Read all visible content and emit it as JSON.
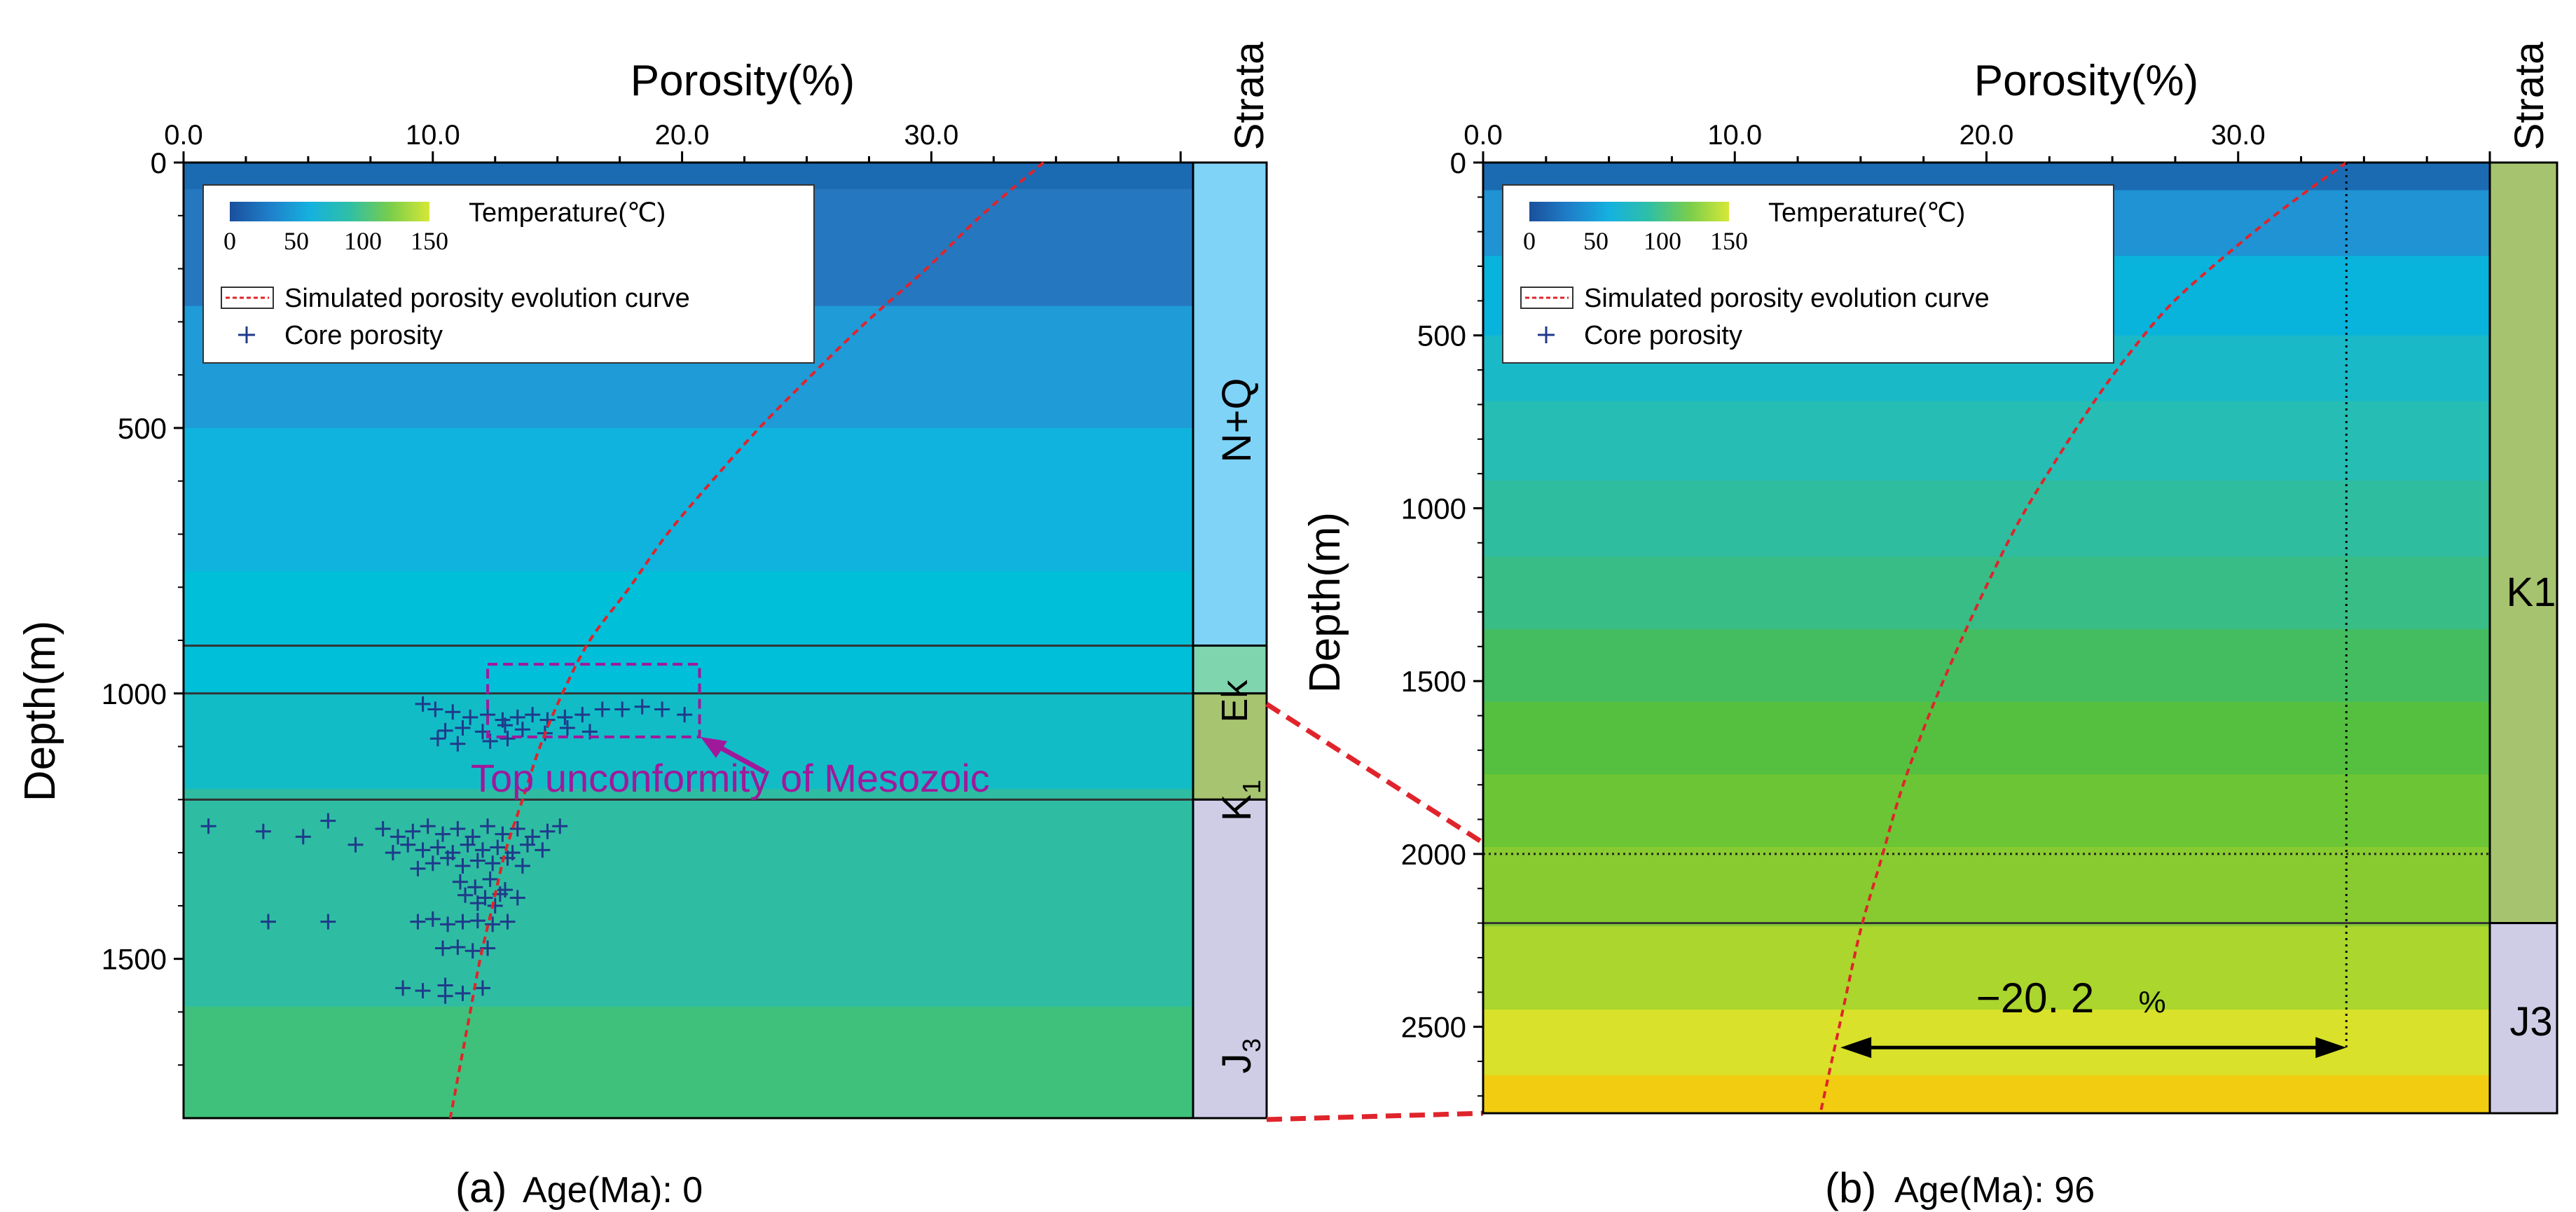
{
  "chart_data": [
    {
      "type": "line",
      "panel": "a",
      "caption_prefix": "(a)",
      "caption": "Age(Ma): 0",
      "xlabel": "Porosity(%)",
      "ylabel": "Depth(m)",
      "xlim": [
        0,
        40.5
      ],
      "ylim": [
        0,
        1800
      ],
      "x_ticks": [
        "0.0",
        "10.0",
        "20.0",
        "30.0"
      ],
      "x_tick_values": [
        0,
        10,
        20,
        30
      ],
      "y_ticks": [
        "0",
        "500",
        "1000",
        "1500"
      ],
      "y_tick_values": [
        0,
        500,
        1000,
        1500
      ],
      "strata_header": "Strata",
      "strata": [
        {
          "name": "N+Q",
          "top": 0,
          "bottom": 910,
          "color": "#7fd3f6"
        },
        {
          "name": "Ek",
          "top": 910,
          "bottom": 1000,
          "color": "#7fd6ae"
        },
        {
          "name": "K1",
          "top": 1000,
          "bottom": 1200,
          "color": "#a7c470"
        },
        {
          "name": "J3",
          "top": 1200,
          "bottom": 1800,
          "color": "#cfcde6"
        }
      ],
      "strata_labels": {
        "nq": "N+Q",
        "ek": "Ek",
        "k_main": "K",
        "k_sub": "1",
        "j_main": "J",
        "j_sub": "3"
      },
      "boundaries": [
        910,
        1000,
        1200
      ],
      "temperature_bands": [
        {
          "top": 0,
          "bottom": 50,
          "color": "#1b6bb3"
        },
        {
          "top": 50,
          "bottom": 270,
          "color": "#2577bf"
        },
        {
          "top": 270,
          "bottom": 500,
          "color": "#1f9bd8"
        },
        {
          "top": 500,
          "bottom": 770,
          "color": "#10b3dd"
        },
        {
          "top": 770,
          "bottom": 1000,
          "color": "#00bfd8"
        },
        {
          "top": 1000,
          "bottom": 1180,
          "color": "#12bcc6"
        },
        {
          "top": 1180,
          "bottom": 1590,
          "color": "#2ebda2"
        },
        {
          "top": 1590,
          "bottom": 1800,
          "color": "#3fc17b"
        }
      ],
      "legend": {
        "colorbar_title": "Temperature(℃)",
        "colorbar_ticks": [
          "0",
          "50",
          "100",
          "150"
        ],
        "curve_label": "Simulated porosity evolution curve",
        "points_label": "Core porosity"
      },
      "porosity_curve": {
        "name": "Simulated porosity evolution curve",
        "x": [
          34.5,
          32,
          29.8,
          27.4,
          25.2,
          23.1,
          21.2,
          19.4,
          17.9,
          16.3,
          15.2,
          14.3,
          13.6,
          12.9,
          12.4,
          11.9,
          11.5,
          11.1,
          10.7
        ],
        "y": [
          0,
          100,
          200,
          300,
          400,
          500,
          600,
          700,
          800,
          900,
          1000,
          1100,
          1200,
          1300,
          1400,
          1500,
          1600,
          1700,
          1800
        ]
      },
      "core_porosity": {
        "name": "Core porosity",
        "points": [
          [
            9.6,
            1020
          ],
          [
            10.1,
            1030
          ],
          [
            10.8,
            1035
          ],
          [
            11.5,
            1045
          ],
          [
            12.2,
            1040
          ],
          [
            12.8,
            1050
          ],
          [
            13.4,
            1045
          ],
          [
            14.0,
            1040
          ],
          [
            14.6,
            1050
          ],
          [
            15.3,
            1045
          ],
          [
            16.0,
            1040
          ],
          [
            16.8,
            1030
          ],
          [
            17.6,
            1030
          ],
          [
            18.4,
            1025
          ],
          [
            19.2,
            1030
          ],
          [
            20.1,
            1040
          ],
          [
            10.5,
            1070
          ],
          [
            11.2,
            1065
          ],
          [
            12.0,
            1072
          ],
          [
            12.9,
            1060
          ],
          [
            13.6,
            1068
          ],
          [
            14.5,
            1075
          ],
          [
            15.4,
            1065
          ],
          [
            16.3,
            1072
          ],
          [
            10.2,
            1085
          ],
          [
            13.0,
            1085
          ],
          [
            12.3,
            1090
          ],
          [
            11.0,
            1095
          ],
          [
            1.0,
            1250
          ],
          [
            3.2,
            1260
          ],
          [
            4.8,
            1270
          ],
          [
            5.8,
            1240
          ],
          [
            6.9,
            1285
          ],
          [
            8.0,
            1255
          ],
          [
            8.6,
            1270
          ],
          [
            9.2,
            1260
          ],
          [
            9.8,
            1250
          ],
          [
            10.4,
            1265
          ],
          [
            11.0,
            1255
          ],
          [
            11.6,
            1270
          ],
          [
            12.2,
            1250
          ],
          [
            12.8,
            1265
          ],
          [
            13.4,
            1255
          ],
          [
            14.0,
            1270
          ],
          [
            14.6,
            1260
          ],
          [
            15.1,
            1250
          ],
          [
            9.0,
            1285
          ],
          [
            9.6,
            1295
          ],
          [
            10.2,
            1290
          ],
          [
            10.8,
            1300
          ],
          [
            11.4,
            1285
          ],
          [
            12.0,
            1295
          ],
          [
            12.6,
            1290
          ],
          [
            13.2,
            1300
          ],
          [
            13.8,
            1285
          ],
          [
            14.4,
            1295
          ],
          [
            8.4,
            1300
          ],
          [
            10.0,
            1320
          ],
          [
            10.6,
            1310
          ],
          [
            11.2,
            1325
          ],
          [
            11.8,
            1315
          ],
          [
            12.4,
            1320
          ],
          [
            13.0,
            1310
          ],
          [
            13.6,
            1325
          ],
          [
            9.4,
            1330
          ],
          [
            11.1,
            1355
          ],
          [
            11.7,
            1365
          ],
          [
            12.3,
            1350
          ],
          [
            12.9,
            1370
          ],
          [
            11.3,
            1380
          ],
          [
            12.1,
            1385
          ],
          [
            12.7,
            1378
          ],
          [
            13.4,
            1385
          ],
          [
            11.8,
            1395
          ],
          [
            12.5,
            1400
          ],
          [
            3.4,
            1430
          ],
          [
            5.8,
            1430
          ],
          [
            9.4,
            1430
          ],
          [
            10.0,
            1425
          ],
          [
            10.6,
            1435
          ],
          [
            11.2,
            1430
          ],
          [
            11.8,
            1428
          ],
          [
            12.4,
            1435
          ],
          [
            13.0,
            1430
          ],
          [
            10.4,
            1480
          ],
          [
            11.0,
            1478
          ],
          [
            11.6,
            1485
          ],
          [
            12.2,
            1480
          ],
          [
            8.8,
            1555
          ],
          [
            9.6,
            1560
          ],
          [
            10.5,
            1550
          ],
          [
            11.2,
            1565
          ],
          [
            12.0,
            1555
          ],
          [
            10.5,
            1570
          ]
        ]
      },
      "annotation": "Top unconformity of Mesozoic"
    },
    {
      "type": "line",
      "panel": "b",
      "caption_prefix": "(b)",
      "caption": "Age(Ma): 96",
      "xlabel": "Porosity(%)",
      "ylabel": "Depth(m)",
      "xlim": [
        0,
        40
      ],
      "ylim": [
        0,
        2750
      ],
      "x_ticks": [
        "0.0",
        "10.0",
        "20.0",
        "30.0"
      ],
      "x_tick_values": [
        0,
        10,
        20,
        30
      ],
      "y_ticks": [
        "0",
        "500",
        "1000",
        "1500",
        "2000",
        "2500"
      ],
      "y_tick_values": [
        0,
        500,
        1000,
        1500,
        2000,
        2500
      ],
      "strata_header": "Strata",
      "strata": [
        {
          "name": "K1",
          "top": 0,
          "bottom": 2200,
          "color": "#a6c36f"
        },
        {
          "name": "J3",
          "top": 2200,
          "bottom": 2750,
          "color": "#cfcde6"
        }
      ],
      "boundaries": [
        2200
      ],
      "dotted_level": 2000,
      "temperature_bands": [
        {
          "top": 0,
          "bottom": 80,
          "color": "#1b6bb3"
        },
        {
          "top": 80,
          "bottom": 270,
          "color": "#1f93d3"
        },
        {
          "top": 270,
          "bottom": 500,
          "color": "#08b3dc"
        },
        {
          "top": 500,
          "bottom": 690,
          "color": "#1ab9c8"
        },
        {
          "top": 690,
          "bottom": 920,
          "color": "#25bdb4"
        },
        {
          "top": 920,
          "bottom": 1140,
          "color": "#2fbd9f"
        },
        {
          "top": 1140,
          "bottom": 1350,
          "color": "#38bd86"
        },
        {
          "top": 1350,
          "bottom": 1560,
          "color": "#44bd61"
        },
        {
          "top": 1560,
          "bottom": 1770,
          "color": "#55c040"
        },
        {
          "top": 1770,
          "bottom": 1980,
          "color": "#6cc534"
        },
        {
          "top": 1980,
          "bottom": 2210,
          "color": "#88cb30"
        },
        {
          "top": 2210,
          "bottom": 2450,
          "color": "#aad62d"
        },
        {
          "top": 2450,
          "bottom": 2640,
          "color": "#d9e12a"
        },
        {
          "top": 2640,
          "bottom": 2750,
          "color": "#f2cc10"
        }
      ],
      "legend": {
        "colorbar_title": "Temperature(℃)",
        "colorbar_ticks": [
          "0",
          "50",
          "100",
          "150"
        ],
        "curve_label": "Simulated porosity evolution curve",
        "points_label": "Core porosity"
      },
      "porosity_curve": {
        "name": "Simulated porosity evolution curve",
        "x": [
          34.3,
          31.5,
          29.0,
          27.2,
          25.6,
          24.2,
          22.6,
          21.2,
          19.9,
          18.7,
          17.6,
          16.6,
          15.8,
          15.0,
          14.3,
          13.4
        ],
        "y": [
          0,
          150,
          300,
          420,
          560,
          700,
          880,
          1050,
          1240,
          1430,
          1620,
          1820,
          2020,
          2220,
          2450,
          2750
        ]
      },
      "reference_line_x": 34.3,
      "difference": {
        "label": "−20. 2",
        "unit": "%",
        "depth": 2560,
        "from": 14.2,
        "to": 34.3
      }
    }
  ],
  "colorbar_colors": [
    "#1a4f9c",
    "#1f7fc9",
    "#15b1df",
    "#2fbfa6",
    "#78cd4c",
    "#d6e837"
  ]
}
